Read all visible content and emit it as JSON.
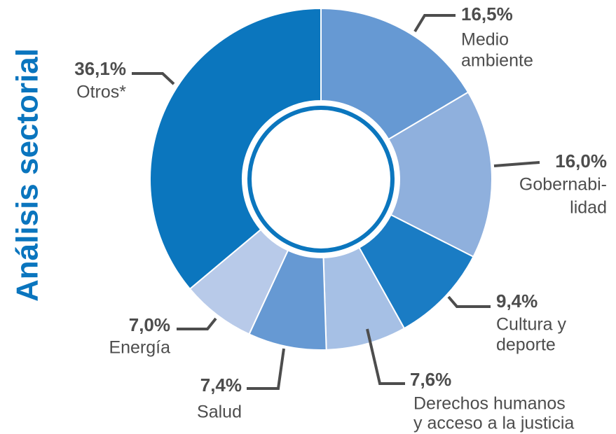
{
  "chart_data": {
    "type": "donut",
    "title": "Análisis sectorial",
    "categories": [
      [
        "Medio",
        "ambiente"
      ],
      [
        "Gobernabi-",
        "lidad"
      ],
      [
        "Cultura y",
        "deporte"
      ],
      [
        "Derechos humanos",
        "y acceso a la justicia"
      ],
      [
        "Salud"
      ],
      [
        "Energía"
      ],
      [
        "Otros*"
      ]
    ],
    "values": [
      16.5,
      16.0,
      9.4,
      7.6,
      7.4,
      7.0,
      36.1
    ],
    "value_labels": [
      "16,5%",
      "16,0%",
      "9,4%",
      "7,6%",
      "7,4%",
      "7,0%",
      "36,1%"
    ],
    "colors": [
      "#6699d3",
      "#8fb0dd",
      "#1a7cc4",
      "#a6c0e5",
      "#6699d3",
      "#b8cae9",
      "#0b76be"
    ]
  }
}
